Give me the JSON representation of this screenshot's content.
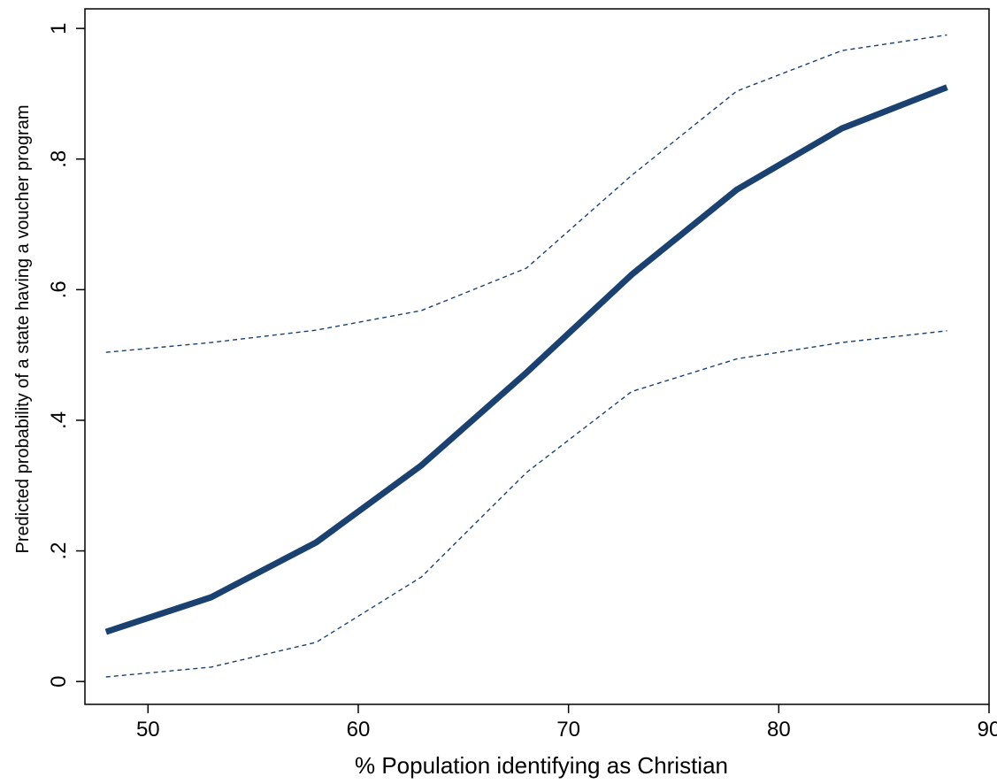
{
  "chart_data": {
    "type": "line",
    "xlabel": "% Population identifying as Christian",
    "ylabel": "Predicted probability of a state having a voucher program",
    "xlim": [
      47,
      90
    ],
    "ylim": [
      -0.035,
      1.03
    ],
    "x_ticks": [
      {
        "value": 50,
        "label": "50"
      },
      {
        "value": 60,
        "label": "60"
      },
      {
        "value": 70,
        "label": "70"
      },
      {
        "value": 80,
        "label": "80"
      },
      {
        "value": 90,
        "label": "90"
      }
    ],
    "y_ticks": [
      {
        "value": 0,
        "label": "0"
      },
      {
        "value": 0.2,
        "label": ".2"
      },
      {
        "value": 0.4,
        "label": ".4"
      },
      {
        "value": 0.6,
        "label": ".6"
      },
      {
        "value": 0.8,
        "label": ".8"
      },
      {
        "value": 1,
        "label": "1"
      }
    ],
    "grid": false,
    "legend": "none",
    "x": [
      48,
      53,
      58,
      63,
      68,
      73,
      78,
      83,
      88
    ],
    "series": [
      {
        "role": "prediction",
        "style": "solid",
        "color": "#1a4170",
        "values": [
          0.076,
          0.129,
          0.213,
          0.331,
          0.473,
          0.623,
          0.753,
          0.847,
          0.91
        ]
      },
      {
        "role": "upper bound",
        "style": "dashed",
        "color": "#1a4170",
        "values": [
          0.504,
          0.519,
          0.538,
          0.568,
          0.633,
          0.775,
          0.904,
          0.966,
          0.99
        ]
      },
      {
        "role": "lower bound",
        "style": "dashed",
        "color": "#1a4170",
        "values": [
          0.007,
          0.022,
          0.06,
          0.16,
          0.32,
          0.444,
          0.494,
          0.519,
          0.537
        ]
      }
    ]
  }
}
